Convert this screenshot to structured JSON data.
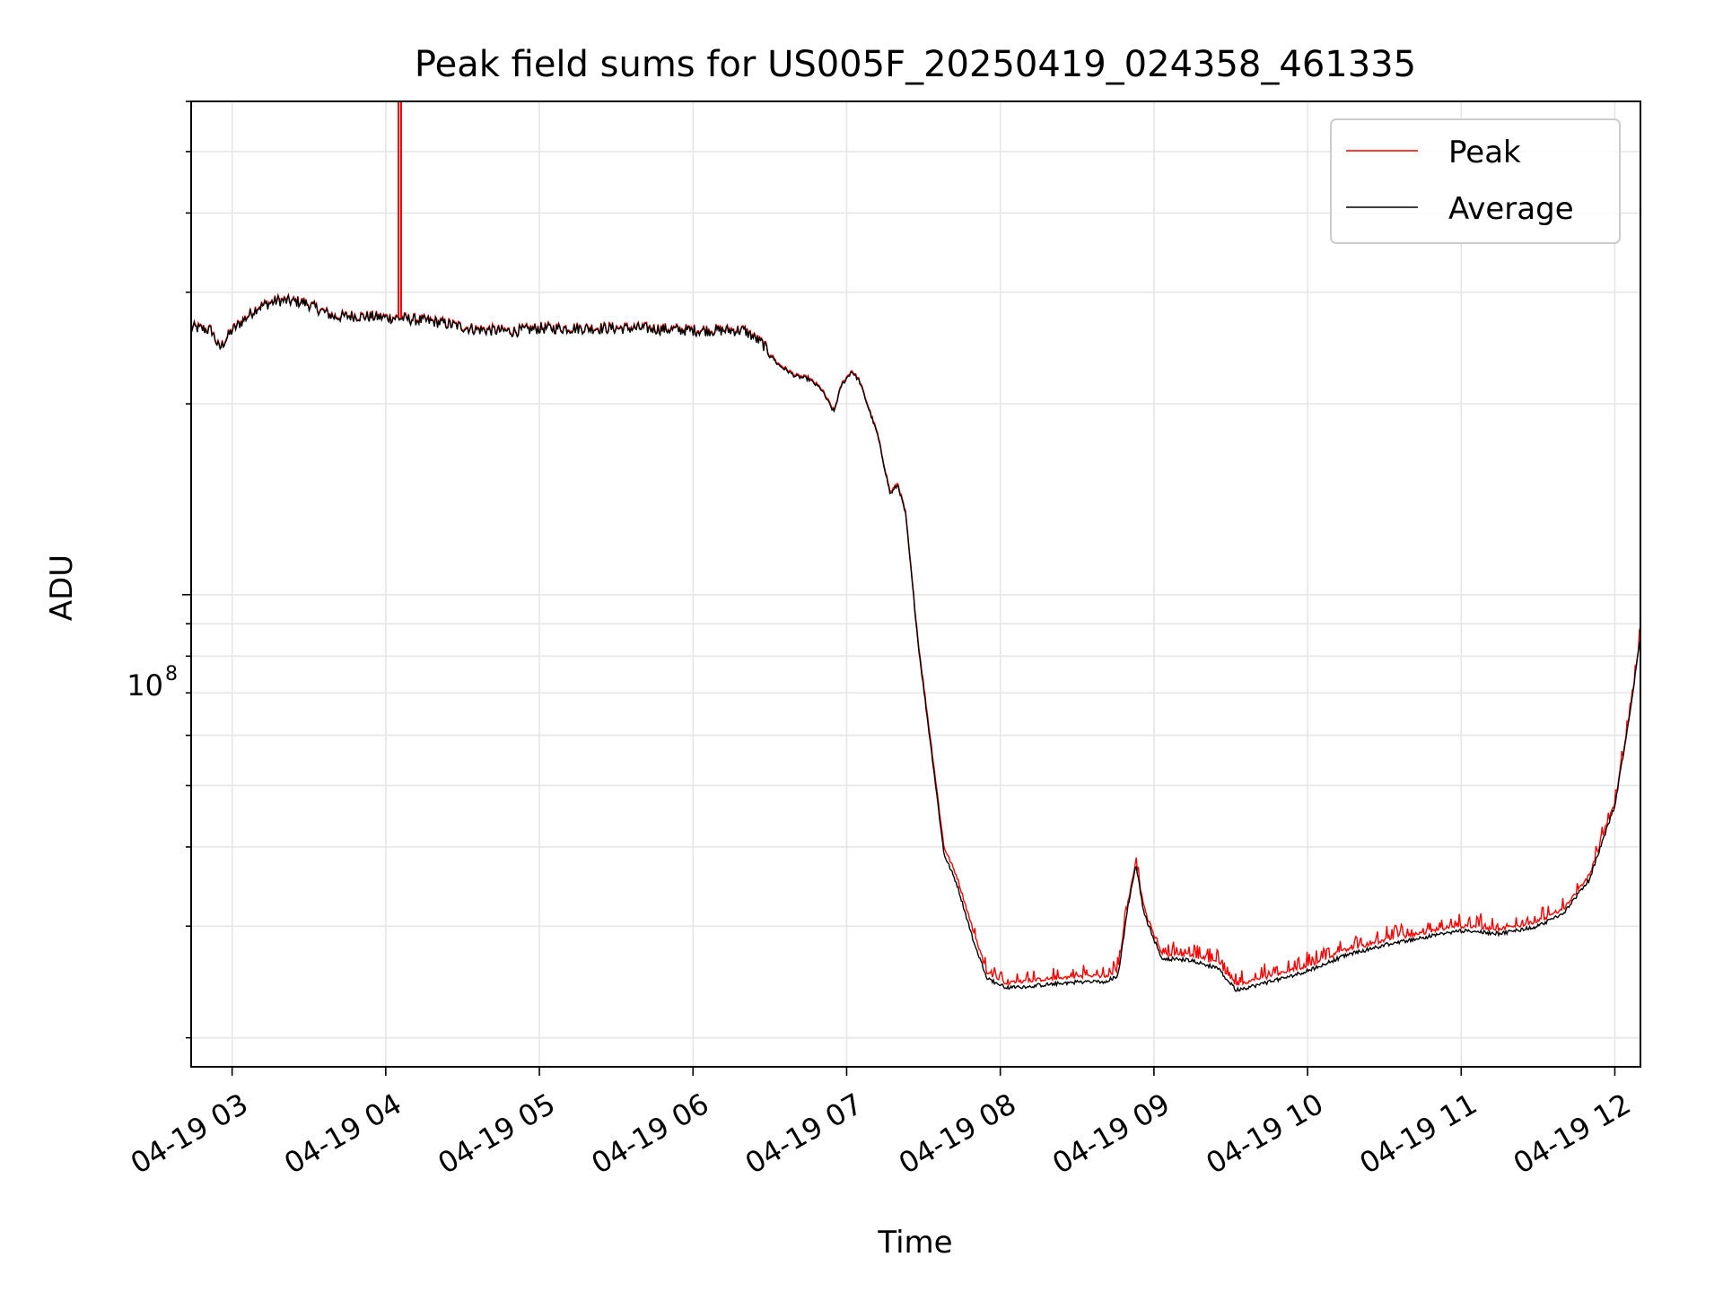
{
  "chart_data": {
    "type": "line",
    "title": "Peak field sums for US005F_20250419_024358_461335",
    "xlabel": "Time",
    "ylabel": "ADU",
    "yscale": "log",
    "ylim": [
      18000000,
      600000000
    ],
    "xlim": [
      "04-19 02:44",
      "04-19 12:10"
    ],
    "grid": true,
    "legend_position": "top-right",
    "x_ticks": [
      "04-19 03",
      "04-19 04",
      "04-19 05",
      "04-19 06",
      "04-19 07",
      "04-19 08",
      "04-19 09",
      "04-19 10",
      "04-19 11",
      "04-19 12"
    ],
    "y_tick_major": {
      "value": 100000000,
      "label": "10",
      "exponent": "8"
    },
    "series": [
      {
        "name": "Peak",
        "color": "#ff0000",
        "x": [
          "04-19 02:44",
          "04-19 02:52",
          "04-19 02:55",
          "04-19 03:00",
          "04-19 03:10",
          "04-19 03:18",
          "04-19 03:28",
          "04-19 03:40",
          "04-19 03:47",
          "04-19 03:56",
          "04-19 04:05",
          "04-19 04:20",
          "04-19 04:35",
          "04-19 04:50",
          "04-19 05:00",
          "04-19 05:20",
          "04-19 05:40",
          "04-19 06:00",
          "04-19 06:20",
          "04-19 06:27",
          "04-19 06:33",
          "04-19 06:40",
          "04-19 06:45",
          "04-19 06:50",
          "04-19 06:55",
          "04-19 06:58",
          "04-19 07:02",
          "04-19 07:05",
          "04-19 07:12",
          "04-19 07:17",
          "04-19 07:20",
          "04-19 07:23",
          "04-19 07:28",
          "04-19 07:34",
          "04-19 07:38",
          "04-19 07:43",
          "04-19 07:50",
          "04-19 07:55",
          "04-19 08:02",
          "04-19 08:10",
          "04-19 08:20",
          "04-19 08:30",
          "04-19 08:40",
          "04-19 08:46",
          "04-19 08:50",
          "04-19 08:53",
          "04-19 08:56",
          "04-19 09:03",
          "04-19 09:15",
          "04-19 09:25",
          "04-19 09:32",
          "04-19 09:40",
          "04-19 09:50",
          "04-19 10:00",
          "04-19 10:15",
          "04-19 10:30",
          "04-19 10:45",
          "04-19 11:00",
          "04-19 11:15",
          "04-19 11:30",
          "04-19 11:40",
          "04-19 11:50",
          "04-19 12:00",
          "04-19 12:05",
          "04-19 12:10"
        ],
        "values": [
          265000000,
          262000000,
          245000000,
          262000000,
          285000000,
          292000000,
          290000000,
          275000000,
          276000000,
          275000000,
          274000000,
          270000000,
          263000000,
          261000000,
          264000000,
          264000000,
          264000000,
          262000000,
          262000000,
          250000000,
          232000000,
          222000000,
          220000000,
          212000000,
          195000000,
          215000000,
          226000000,
          218000000,
          180000000,
          145000000,
          150000000,
          135000000,
          84000000,
          54000000,
          40000000,
          36000000,
          29000000,
          25300000,
          24400000,
          24600000,
          24800000,
          25000000,
          25000000,
          25500000,
          33000000,
          38000000,
          32000000,
          27200000,
          27000000,
          26200000,
          24300000,
          24700000,
          25300000,
          26000000,
          27500000,
          28500000,
          29300000,
          30000000,
          29700000,
          30500000,
          32000000,
          36000000,
          47000000,
          62000000,
          86000000
        ]
      },
      {
        "name": "Average",
        "color": "#000000",
        "x": [
          "04-19 02:44",
          "04-19 02:52",
          "04-19 02:55",
          "04-19 03:00",
          "04-19 03:10",
          "04-19 03:18",
          "04-19 03:28",
          "04-19 03:40",
          "04-19 03:47",
          "04-19 03:56",
          "04-19 04:05",
          "04-19 04:20",
          "04-19 04:35",
          "04-19 04:50",
          "04-19 05:00",
          "04-19 05:20",
          "04-19 05:40",
          "04-19 06:00",
          "04-19 06:20",
          "04-19 06:27",
          "04-19 06:33",
          "04-19 06:40",
          "04-19 06:45",
          "04-19 06:50",
          "04-19 06:55",
          "04-19 06:58",
          "04-19 07:02",
          "04-19 07:05",
          "04-19 07:12",
          "04-19 07:17",
          "04-19 07:20",
          "04-19 07:23",
          "04-19 07:28",
          "04-19 07:34",
          "04-19 07:38",
          "04-19 07:43",
          "04-19 07:50",
          "04-19 07:55",
          "04-19 08:02",
          "04-19 08:10",
          "04-19 08:20",
          "04-19 08:30",
          "04-19 08:40",
          "04-19 08:46",
          "04-19 08:50",
          "04-19 08:53",
          "04-19 08:56",
          "04-19 09:03",
          "04-19 09:15",
          "04-19 09:25",
          "04-19 09:32",
          "04-19 09:40",
          "04-19 09:50",
          "04-19 10:00",
          "04-19 10:15",
          "04-19 10:30",
          "04-19 10:45",
          "04-19 11:00",
          "04-19 11:15",
          "04-19 11:30",
          "04-19 11:40",
          "04-19 11:50",
          "04-19 12:00",
          "04-19 12:05",
          "04-19 12:10"
        ],
        "values": [
          264000000,
          261000000,
          244000000,
          261000000,
          284000000,
          291000000,
          289000000,
          274000000,
          275000000,
          274000000,
          273000000,
          269000000,
          262000000,
          260000000,
          263000000,
          263000000,
          263000000,
          261000000,
          261000000,
          249000000,
          231000000,
          221000000,
          219000000,
          211000000,
          194000000,
          214000000,
          225000000,
          217000000,
          179000000,
          144000000,
          149000000,
          134000000,
          83000000,
          53000000,
          39000000,
          35000000,
          28000000,
          24800000,
          24000000,
          24100000,
          24300000,
          24500000,
          24500000,
          25000000,
          32500000,
          37500000,
          31500000,
          26700000,
          26500000,
          25700000,
          23800000,
          24200000,
          24800000,
          25500000,
          27000000,
          28000000,
          28800000,
          29500000,
          29200000,
          30000000,
          31500000,
          35500000,
          46500000,
          61500000,
          85500000
        ]
      }
    ],
    "spikes": [
      {
        "series": "Peak",
        "x": "04-19 04:05",
        "value": 600000000
      },
      {
        "series": "Peak",
        "x": "04-19 04:06",
        "value": 600000000
      }
    ]
  }
}
